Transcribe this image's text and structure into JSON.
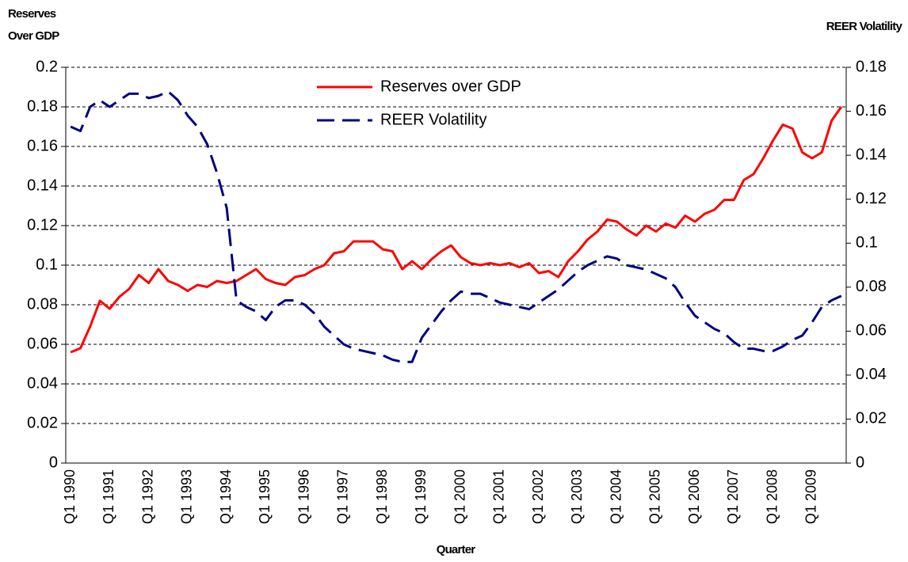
{
  "chart_data": {
    "type": "line",
    "y_label_lines": [
      "Reserves",
      "Over GDP"
    ],
    "y2_label": "REER Volatility",
    "x_label": "Quarter",
    "categories": [
      "Q1 1990",
      null,
      null,
      null,
      "Q1 1991",
      null,
      null,
      null,
      "Q1 1992",
      null,
      null,
      null,
      "Q1 1993",
      null,
      null,
      null,
      "Q1 1994",
      null,
      null,
      null,
      "Q1 1995",
      null,
      null,
      null,
      "Q1 1996",
      null,
      null,
      null,
      "Q1 1997",
      null,
      null,
      null,
      "Q1 1998",
      null,
      null,
      null,
      "Q1 1999",
      null,
      null,
      null,
      "Q1 2000",
      null,
      null,
      null,
      "Q1 2001",
      null,
      null,
      null,
      "Q1 2002",
      null,
      null,
      null,
      "Q1 2003",
      null,
      null,
      null,
      "Q1 2004",
      null,
      null,
      null,
      "Q1 2005",
      null,
      null,
      null,
      "Q1 2006",
      null,
      null,
      null,
      "Q1 2007",
      null,
      null,
      null,
      "Q1 2008",
      null,
      null,
      null,
      "Q1 2009",
      null,
      null,
      null
    ],
    "series": [
      {
        "name": "Reserves over GDP",
        "color": "#ff0000",
        "line_style": "solid",
        "axis": "y",
        "values": [
          0.056,
          0.058,
          0.069,
          0.082,
          0.078,
          0.084,
          0.088,
          0.095,
          0.091,
          0.098,
          0.092,
          0.09,
          0.087,
          0.09,
          0.089,
          0.092,
          0.091,
          0.092,
          0.095,
          0.098,
          0.093,
          0.091,
          0.09,
          0.094,
          0.095,
          0.098,
          0.1,
          0.106,
          0.107,
          0.112,
          0.112,
          0.112,
          0.108,
          0.107,
          0.098,
          0.102,
          0.098,
          0.103,
          0.107,
          0.11,
          0.104,
          0.101,
          0.1,
          0.101,
          0.1,
          0.101,
          0.099,
          0.101,
          0.096,
          0.097,
          0.094,
          0.102,
          0.107,
          0.113,
          0.117,
          0.123,
          0.122,
          0.118,
          0.115,
          0.12,
          0.117,
          0.121,
          0.119,
          0.125,
          0.122,
          0.126,
          0.128,
          0.133,
          0.133,
          0.143,
          0.146,
          0.154,
          0.163,
          0.171,
          0.169,
          0.157,
          0.154,
          0.157,
          0.173,
          0.18
        ]
      },
      {
        "name": "REER Volatility",
        "color": "#000080",
        "line_style": "dashed",
        "axis": "y2",
        "values": [
          0.153,
          0.151,
          0.162,
          0.165,
          0.162,
          0.165,
          0.168,
          0.168,
          0.166,
          0.167,
          0.169,
          0.165,
          0.158,
          0.153,
          0.145,
          0.132,
          0.116,
          0.074,
          0.071,
          0.069,
          0.065,
          0.071,
          0.074,
          0.074,
          0.072,
          0.068,
          0.062,
          0.058,
          0.054,
          0.052,
          0.051,
          0.05,
          0.049,
          0.047,
          0.046,
          0.046,
          0.057,
          0.063,
          0.069,
          0.074,
          0.078,
          0.077,
          0.077,
          0.075,
          0.073,
          0.072,
          0.071,
          0.07,
          0.073,
          0.076,
          0.079,
          0.083,
          0.087,
          0.09,
          0.092,
          0.094,
          0.093,
          0.09,
          0.089,
          0.088,
          0.086,
          0.084,
          0.08,
          0.073,
          0.067,
          0.064,
          0.061,
          0.059,
          0.055,
          0.052,
          0.052,
          0.051,
          0.051,
          0.053,
          0.056,
          0.058,
          0.064,
          0.071,
          0.074,
          0.076
        ]
      }
    ],
    "ylim": [
      0,
      0.2
    ],
    "yticks": [
      0,
      0.02,
      0.04,
      0.06,
      0.08,
      0.1,
      0.12,
      0.14,
      0.16,
      0.18,
      0.2
    ],
    "y2lim": [
      0,
      0.18
    ],
    "y2ticks": [
      0,
      0.02,
      0.04,
      0.06,
      0.08,
      0.1,
      0.12,
      0.14,
      0.16,
      0.18
    ],
    "grid": true,
    "legend": "top"
  }
}
